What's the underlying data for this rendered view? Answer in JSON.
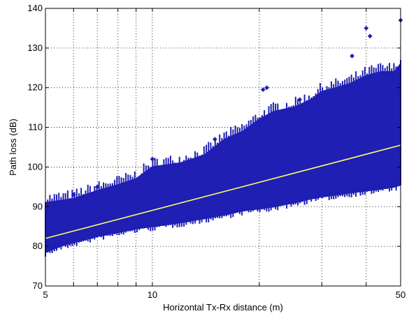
{
  "chart_data": {
    "type": "scatter",
    "title": "",
    "xlabel": "Horizontal Tx-Rx distance (m)",
    "ylabel": "Path loss (dB)",
    "xscale": "log",
    "xlim": [
      5,
      50
    ],
    "ylim": [
      70,
      140
    ],
    "x_ticks": [
      5,
      6,
      7,
      8,
      9,
      10,
      20,
      30,
      40,
      50
    ],
    "x_tick_labels": [
      "5",
      "10",
      "50"
    ],
    "x_tick_label_values": [
      5,
      10,
      50
    ],
    "y_ticks": [
      70,
      80,
      90,
      100,
      110,
      120,
      130,
      140
    ],
    "y_tick_labels": [
      "70",
      "80",
      "90",
      "100",
      "110",
      "120",
      "130",
      "140"
    ],
    "grid": true,
    "series": [
      {
        "style": "scatter band",
        "color": "#1f1fb4",
        "marker": "diamond",
        "x": [
          5,
          5.5,
          6,
          7,
          8,
          9,
          10,
          12,
          14,
          16,
          18,
          20,
          22,
          25,
          28,
          30,
          33,
          36,
          40,
          44,
          48,
          50
        ],
        "y_lower": [
          78.5,
          80,
          81,
          82.5,
          83.5,
          84.5,
          85,
          86,
          87,
          88,
          89,
          89.5,
          90,
          91,
          92,
          92.5,
          93,
          93.5,
          94,
          94.5,
          95,
          95.5
        ],
        "y_upper": [
          91,
          91.5,
          92,
          94,
          95.5,
          97,
          100,
          101,
          103,
          107,
          109,
          112,
          114,
          115,
          117,
          119,
          120,
          121,
          123,
          124,
          124,
          126
        ]
      },
      {
        "style": "line",
        "color": "#ffff66",
        "x": [
          5,
          50
        ],
        "y": [
          82,
          105.5
        ]
      }
    ],
    "outliers": [
      {
        "x": 50,
        "y": 137
      },
      {
        "x": 40,
        "y": 135
      },
      {
        "x": 41,
        "y": 133
      },
      {
        "x": 36.5,
        "y": 128
      },
      {
        "x": 21,
        "y": 120
      },
      {
        "x": 20.5,
        "y": 119.5
      },
      {
        "x": 26,
        "y": 117
      },
      {
        "x": 15,
        "y": 107
      },
      {
        "x": 10,
        "y": 102
      },
      {
        "x": 7,
        "y": 95
      },
      {
        "x": 6,
        "y": 93
      }
    ]
  }
}
